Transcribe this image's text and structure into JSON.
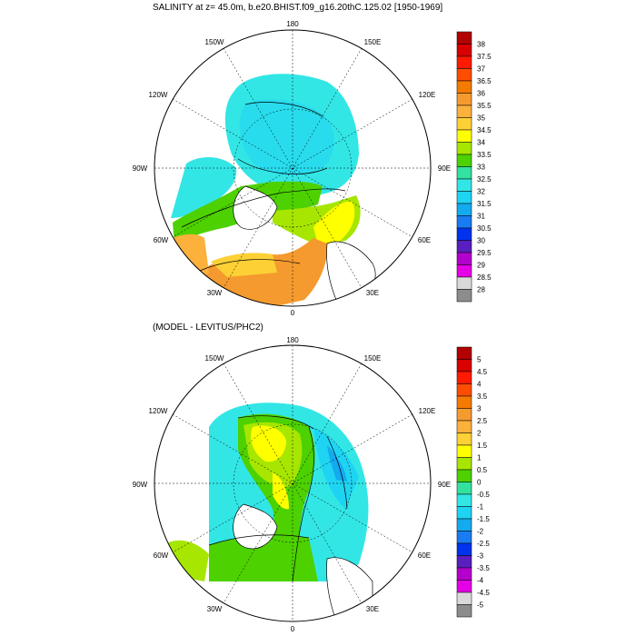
{
  "panel1": {
    "title": "SALINITY at z=  45.0m, b.e20.BHIST.f09_g16.20thC.125.02 [1950-1969]",
    "lon_labels": {
      "top": "180",
      "n150w": "150W",
      "n150e": "150E",
      "n120w": "120W",
      "n120e": "120E",
      "w90": "90W",
      "e90": "90E",
      "s60w": "60W",
      "s60e": "60E",
      "s30w": "30W",
      "s30e": "30E",
      "bottom": "0"
    },
    "colorbar": {
      "labels": [
        "38",
        "37.5",
        "37",
        "36.5",
        "36",
        "35.5",
        "35",
        "34.5",
        "34",
        "33.5",
        "33",
        "32.5",
        "32",
        "31.5",
        "31",
        "30.5",
        "30",
        "29.5",
        "29",
        "28.5",
        "28"
      ],
      "colors": [
        "#b30000",
        "#d90000",
        "#ff1a00",
        "#ff4d00",
        "#f57a00",
        "#f59a2e",
        "#fbb13c",
        "#fdd035",
        "#ffff00",
        "#a6e600",
        "#4dd100",
        "#33e1a0",
        "#33e6e6",
        "#1fd4f2",
        "#14aaf0",
        "#1a7cf2",
        "#0033ee",
        "#5a1fbf",
        "#b400cc",
        "#e600e6",
        "#d9d9d9",
        "#8c8c8c"
      ]
    }
  },
  "panel2": {
    "title": "(MODEL - LEVITUS/PHC2)",
    "lon_labels": {
      "top": "180",
      "n150w": "150W",
      "n150e": "150E",
      "n120w": "120W",
      "n120e": "120E",
      "w90": "90W",
      "e90": "90E",
      "s60w": "60W",
      "s60e": "60E",
      "s30w": "30W",
      "s30e": "30E",
      "bottom": "0"
    },
    "colorbar": {
      "labels": [
        "5",
        "4.5",
        "4",
        "3.5",
        "3",
        "2.5",
        "2",
        "1.5",
        "1",
        "0.5",
        "0",
        "-0.5",
        "-1",
        "-1.5",
        "-2",
        "-2.5",
        "-3",
        "-3.5",
        "-4",
        "-4.5",
        "-5"
      ],
      "colors": [
        "#b30000",
        "#d90000",
        "#ff1a00",
        "#ff4d00",
        "#f57a00",
        "#f59a2e",
        "#fbb13c",
        "#fdd035",
        "#ffff00",
        "#a6e600",
        "#4dd100",
        "#33e1a0",
        "#33e6e6",
        "#1fd4f2",
        "#14aaf0",
        "#1a7cf2",
        "#0033ee",
        "#5a1fbf",
        "#b400cc",
        "#e600e6",
        "#d9d9d9",
        "#8c8c8c"
      ]
    }
  }
}
